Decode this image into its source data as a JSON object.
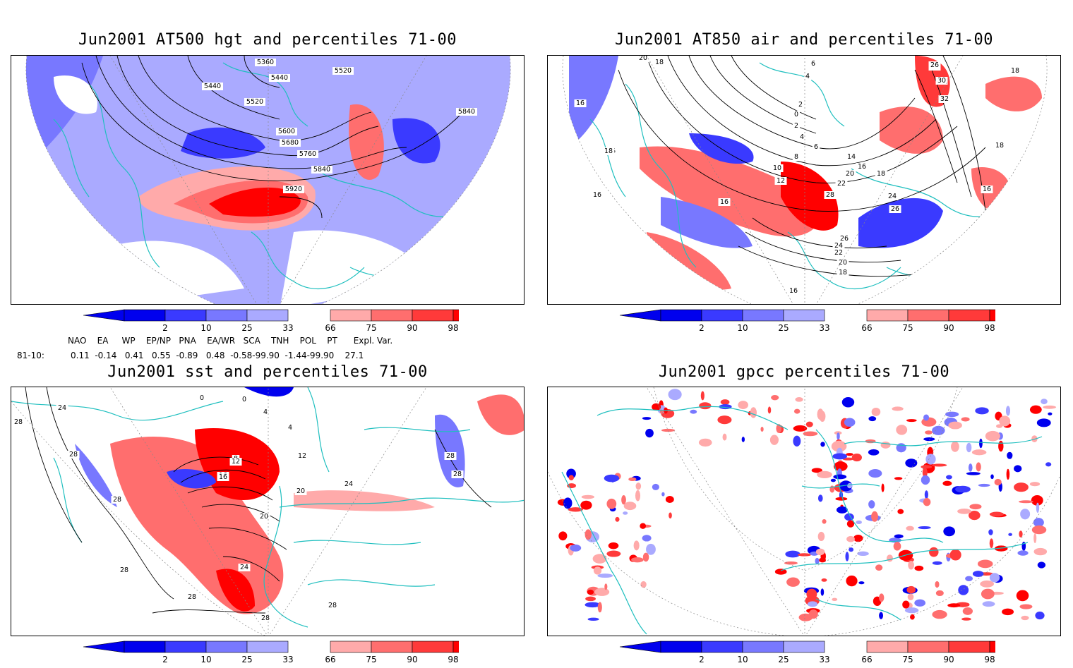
{
  "panels": [
    {
      "id": "p1",
      "title": "Jun2001 AT500 hgt and percentiles 71-00",
      "contour_labels": [
        "5360",
        "5520",
        "5440",
        "5440",
        "5520",
        "5840",
        "5600",
        "5680",
        "5760",
        "5840",
        "5920"
      ]
    },
    {
      "id": "p2",
      "title": "Jun2001 AT850 air and percentiles 71-00",
      "contour_labels": [
        "20",
        "18",
        "6",
        "4",
        "2",
        "0",
        "2",
        "4",
        "6",
        "8",
        "10",
        "12",
        "14",
        "16",
        "18",
        "20",
        "22",
        "28",
        "24",
        "26",
        "26",
        "24",
        "22",
        "20",
        "18",
        "16",
        "16",
        "16",
        "16",
        "18",
        "30",
        "28",
        "32",
        "26",
        "18",
        "18",
        "16",
        "16"
      ]
    },
    {
      "id": "p3",
      "title": "Jun2001 sst and percentiles 71-00",
      "contour_labels": [
        "24",
        "28",
        "28",
        "28",
        "0",
        "0",
        "4",
        "4",
        "8",
        "12",
        "12",
        "16",
        "16",
        "20",
        "20",
        "24",
        "24",
        "28",
        "28",
        "28",
        "28",
        "28",
        "28"
      ]
    },
    {
      "id": "p4",
      "title": "Jun2001 gpcc percentiles 71-00",
      "contour_labels": []
    }
  ],
  "colorbar": {
    "ticks": [
      "2",
      "10",
      "25",
      "33",
      "66",
      "75",
      "90",
      "98"
    ],
    "colors": [
      "#0000ee",
      "#3a3aff",
      "#7878ff",
      "#aaaaff",
      "#ffaaaa",
      "#ff6e6e",
      "#ff3a3a",
      "#ff0000"
    ]
  },
  "indices": {
    "header": "NAO    EA     WP    EP/NP   PNA    EA/WR   SCA    TNH    POL    PT      Expl. Var.",
    "row_label": "81-10:",
    "row_values": "0.11  -0.14   0.41   0.55  -0.89   0.48  -0.58-99.90  -1.44-99.90    27.1"
  },
  "styles": {
    "coast_color": "#1fbfbf",
    "contour_color": "#000000",
    "border_color": "#000000"
  }
}
